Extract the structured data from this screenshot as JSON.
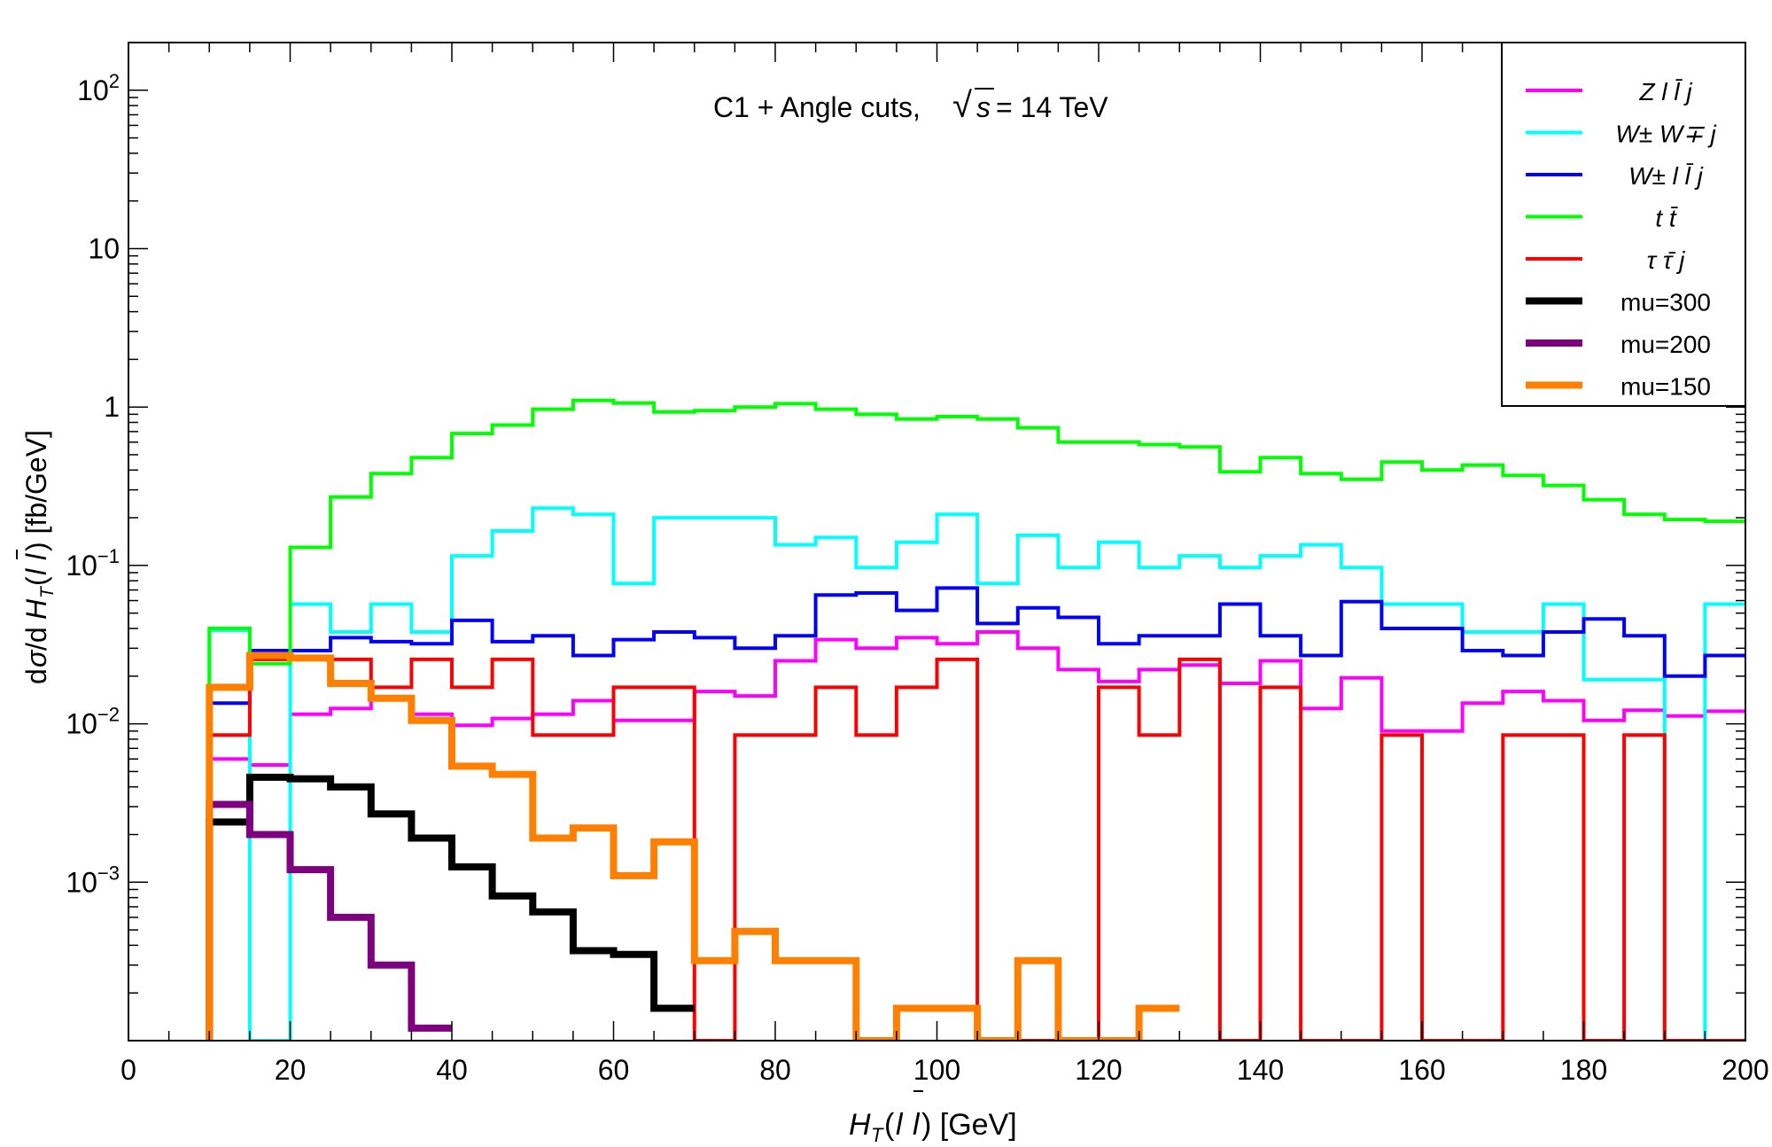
{
  "chart_data": {
    "type": "line",
    "title": "C1 + Angle cuts, √s = 14 TeV",
    "xlabel": "H_T(l l̄) [GeV]",
    "ylabel": "dσ/dH_T(l l̄) [fb/GeV]",
    "xlim": [
      0,
      200
    ],
    "ylim": [
      0.0001,
      200
    ],
    "yscale": "log",
    "grid": false,
    "legend_position": "top-right",
    "x_ticks": [
      "0",
      "20",
      "40",
      "60",
      "80",
      "100",
      "120",
      "140",
      "160",
      "180",
      "200"
    ],
    "y_ticks": [
      "10⁻³",
      "10⁻²",
      "10⁻¹",
      "1",
      "10",
      "10²"
    ],
    "bin_edges": [
      10,
      15,
      20,
      25,
      30,
      35,
      40,
      45,
      50,
      55,
      60,
      65,
      70,
      75,
      80,
      85,
      90,
      95,
      100,
      105,
      110,
      115,
      120,
      125,
      130,
      135,
      140,
      145,
      150,
      155,
      160,
      165,
      170,
      175,
      180,
      185,
      190,
      195,
      200
    ],
    "series": [
      {
        "name": "Z l l̄ j",
        "color": "#ff00ff",
        "width": 4,
        "values": [
          0.006,
          0.0055,
          0.0115,
          0.0125,
          0.0145,
          0.0115,
          0.0098,
          0.0108,
          0.0115,
          0.014,
          0.0105,
          0.0105,
          0.016,
          0.015,
          0.025,
          0.034,
          0.03,
          0.035,
          0.032,
          0.038,
          0.03,
          0.022,
          0.0185,
          0.022,
          0.0235,
          0.018,
          0.025,
          0.0125,
          0.0195,
          0.009,
          0.009,
          0.0135,
          0.016,
          0.014,
          0.0105,
          0.0122,
          0.0112,
          0.012
        ]
      },
      {
        "name": "W± W∓ j",
        "color": "#00ffff",
        "width": 4,
        "values": [
          0.039,
          0.0001,
          0.057,
          0.038,
          0.057,
          0.038,
          0.115,
          0.165,
          0.23,
          0.21,
          0.077,
          0.2,
          0.2,
          0.2,
          0.135,
          0.15,
          0.097,
          0.14,
          0.21,
          0.077,
          0.155,
          0.097,
          0.14,
          0.097,
          0.115,
          0.097,
          0.115,
          0.135,
          0.097,
          0.057,
          0.057,
          0.038,
          0.038,
          0.057,
          0.019,
          0.019,
          0.0001,
          0.057
        ]
      },
      {
        "name": "W± l l̄ j",
        "color": "#0000ff",
        "width": 4,
        "values": [
          0.0135,
          0.029,
          0.029,
          0.035,
          0.033,
          0.032,
          0.045,
          0.033,
          0.036,
          0.027,
          0.034,
          0.038,
          0.035,
          0.03,
          0.036,
          0.065,
          0.067,
          0.052,
          0.072,
          0.043,
          0.054,
          0.047,
          0.032,
          0.036,
          0.036,
          0.057,
          0.036,
          0.027,
          0.059,
          0.04,
          0.04,
          0.029,
          0.027,
          0.038,
          0.046,
          0.036,
          0.02,
          0.027
        ]
      },
      {
        "name": "t t̄",
        "color": "#00ff00",
        "width": 4,
        "values": [
          0.04,
          0.024,
          0.13,
          0.27,
          0.38,
          0.48,
          0.68,
          0.77,
          0.97,
          1.1,
          1.06,
          0.93,
          0.95,
          1.0,
          1.05,
          0.97,
          0.9,
          0.84,
          0.87,
          0.84,
          0.74,
          0.6,
          0.6,
          0.58,
          0.56,
          0.39,
          0.48,
          0.38,
          0.35,
          0.45,
          0.4,
          0.43,
          0.37,
          0.32,
          0.26,
          0.21,
          0.195,
          0.19
        ]
      },
      {
        "name": "τ τ̄ j",
        "color": "#ff0000",
        "width": 4,
        "values": [
          0.0085,
          0.0255,
          0.0255,
          0.0255,
          0.017,
          0.0255,
          0.017,
          0.0255,
          0.0085,
          0.0085,
          0.017,
          0.017,
          0.0001,
          0.0085,
          0.0085,
          0.017,
          0.0085,
          0.017,
          0.0255,
          0.0001,
          0.0001,
          0.0001,
          0.017,
          0.0085,
          0.0255,
          0.0001,
          0.017,
          0.0001,
          0.0001,
          0.0085,
          0.0001,
          0.0001,
          0.0085,
          0.0085,
          0.0001,
          0.0085,
          0.0001,
          0.0001
        ]
      },
      {
        "name": "mu=300",
        "color": "#000000",
        "width": 8,
        "values": [
          0.0024,
          0.0046,
          0.0045,
          0.004,
          0.0027,
          0.0019,
          0.00125,
          0.00082,
          0.00065,
          0.00037,
          0.00035,
          0.00016
        ]
      },
      {
        "name": "mu=200",
        "color": "#7f007f",
        "width": 8,
        "values": [
          0.0031,
          0.002,
          0.0012,
          0.0006,
          0.0003,
          0.00012
        ]
      },
      {
        "name": "mu=150",
        "color": "#ff7f00",
        "width": 8,
        "values": [
          0.017,
          0.027,
          0.026,
          0.018,
          0.0145,
          0.0105,
          0.0054,
          0.0048,
          0.0019,
          0.0022,
          0.0011,
          0.0018,
          0.00032,
          0.00049,
          0.00032,
          0.00032,
          0.0001,
          0.00016,
          0.00016,
          0.0001,
          0.00032,
          0.0001,
          0.0001,
          0.00016
        ]
      }
    ]
  }
}
